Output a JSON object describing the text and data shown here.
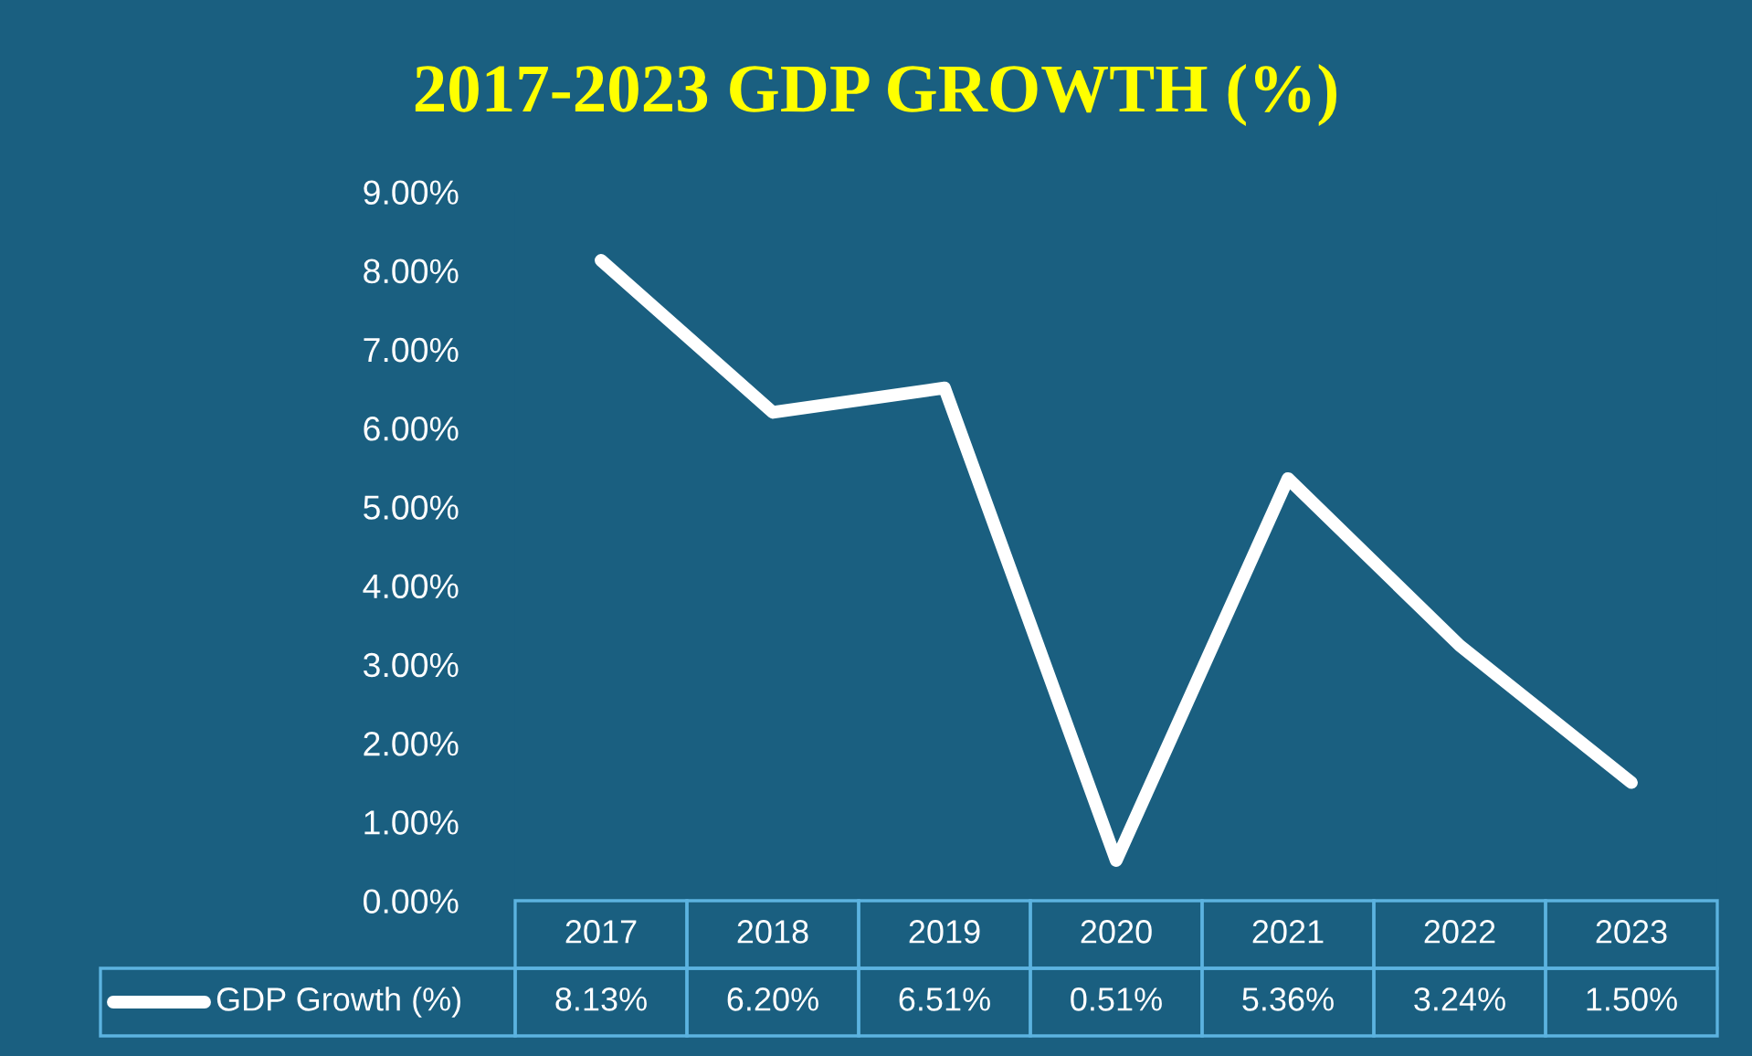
{
  "chart_data": {
    "type": "line",
    "title": "2017-2023 GDP GROWTH (%)",
    "categories": [
      "2017",
      "2018",
      "2019",
      "2020",
      "2021",
      "2022",
      "2023"
    ],
    "series": [
      {
        "name": "GDP Growth (%)",
        "color": "#ffffff",
        "values": [
          8.13,
          6.2,
          6.51,
          0.51,
          5.36,
          3.24,
          1.5
        ],
        "value_labels": [
          "8.13%",
          "6.20%",
          "6.51%",
          "0.51%",
          "5.36%",
          "3.24%",
          "1.50%"
        ]
      }
    ],
    "ylim": [
      0,
      9
    ],
    "yticks": [
      {
        "value": 0,
        "label": "0.00%"
      },
      {
        "value": 1,
        "label": "1.00%"
      },
      {
        "value": 2,
        "label": "2.00%"
      },
      {
        "value": 3,
        "label": "3.00%"
      },
      {
        "value": 4,
        "label": "4.00%"
      },
      {
        "value": 5,
        "label": "5.00%"
      },
      {
        "value": 6,
        "label": "6.00%"
      },
      {
        "value": 7,
        "label": "7.00%"
      },
      {
        "value": 8,
        "label": "8.00%"
      },
      {
        "value": 9,
        "label": "9.00%"
      }
    ],
    "grid": false,
    "legend": "bottom",
    "marker": "none",
    "line_style": "solid"
  }
}
